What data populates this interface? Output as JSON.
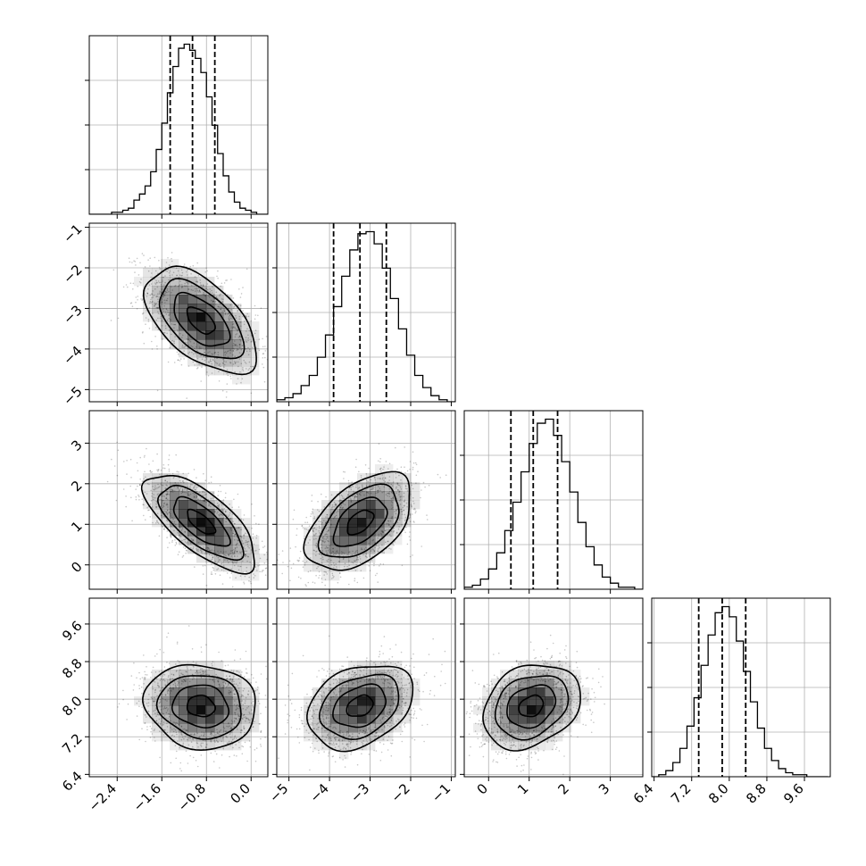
{
  "chart_data": {
    "type": "corner",
    "params": [
      {
        "range": [
          -2.9,
          0.3
        ],
        "ticks": [
          -2.4,
          -1.6,
          -0.8,
          0.0
        ],
        "tick_labels": [
          "−2.4",
          "−1.6",
          "−0.8",
          "0.0"
        ]
      },
      {
        "range": [
          -5.3,
          -0.9
        ],
        "ticks": [
          -5,
          -4,
          -3,
          -2,
          -1
        ],
        "tick_labels": [
          "−5",
          "−4",
          "−3",
          "−2",
          "−1"
        ]
      },
      {
        "range": [
          -0.6,
          3.8
        ],
        "ticks": [
          0,
          1,
          2,
          3
        ],
        "tick_labels": [
          "0",
          "1",
          "2",
          "3"
        ]
      },
      {
        "range": [
          6.35,
          10.15
        ],
        "ticks": [
          6.4,
          7.2,
          8.0,
          8.8,
          9.6
        ],
        "tick_labels": [
          "6.4",
          "7.2",
          "8.0",
          "8.8",
          "9.6"
        ]
      }
    ],
    "marginals": [
      {
        "quantiles": [
          -1.45,
          -1.05,
          -0.65
        ],
        "bin_edges": [
          -2.9,
          -2.8,
          -2.7,
          -2.6,
          -2.5,
          -2.4,
          -2.3,
          -2.2,
          -2.1,
          -2.0,
          -1.9,
          -1.8,
          -1.7,
          -1.6,
          -1.5,
          -1.4,
          -1.3,
          -1.2,
          -1.1,
          -1.0,
          -0.9,
          -0.8,
          -0.7,
          -0.6,
          -0.5,
          -0.4,
          -0.3,
          -0.2,
          -0.1,
          0.0,
          0.1,
          0.2,
          0.3
        ],
        "counts": [
          0,
          0,
          0,
          0,
          1,
          1,
          2,
          3,
          7,
          10,
          14,
          21,
          32,
          45,
          60,
          73,
          82,
          84,
          81,
          77,
          70,
          58,
          44,
          30,
          19,
          11,
          6,
          3,
          2,
          1,
          0,
          0
        ]
      },
      {
        "quantiles": [
          -3.9,
          -3.25,
          -2.6
        ],
        "bin_edges": [
          -5.3,
          -5.1,
          -4.9,
          -4.7,
          -4.5,
          -4.3,
          -4.1,
          -3.9,
          -3.7,
          -3.5,
          -3.3,
          -3.1,
          -2.9,
          -2.7,
          -2.5,
          -2.3,
          -2.1,
          -1.9,
          -1.7,
          -1.5,
          -1.3,
          -1.1,
          -0.9
        ],
        "counts": [
          1,
          2,
          4,
          8,
          13,
          22,
          33,
          47,
          62,
          75,
          83,
          84,
          78,
          66,
          51,
          36,
          23,
          13,
          7,
          3,
          1,
          0
        ]
      },
      {
        "quantiles": [
          0.55,
          1.1,
          1.7
        ],
        "bin_edges": [
          -0.6,
          -0.4,
          -0.2,
          0.0,
          0.2,
          0.4,
          0.6,
          0.8,
          1.0,
          1.2,
          1.4,
          1.6,
          1.8,
          2.0,
          2.2,
          2.4,
          2.6,
          2.8,
          3.0,
          3.2,
          3.4,
          3.6,
          3.8
        ],
        "counts": [
          1,
          2,
          5,
          10,
          18,
          29,
          43,
          58,
          72,
          82,
          84,
          76,
          63,
          48,
          33,
          21,
          12,
          6,
          3,
          1,
          1,
          0
        ]
      },
      {
        "quantiles": [
          7.35,
          7.85,
          8.35
        ],
        "bin_edges": [
          6.35,
          6.5,
          6.65,
          6.8,
          6.95,
          7.1,
          7.25,
          7.4,
          7.55,
          7.7,
          7.85,
          8.0,
          8.15,
          8.3,
          8.45,
          8.6,
          8.75,
          8.9,
          9.05,
          9.2,
          9.35,
          9.5,
          9.65,
          9.8,
          9.95,
          10.1
        ],
        "counts": [
          0,
          1,
          3,
          7,
          14,
          25,
          39,
          55,
          70,
          81,
          84,
          79,
          67,
          52,
          37,
          24,
          14,
          8,
          4,
          2,
          1,
          1,
          0,
          0,
          0
        ]
      }
    ],
    "pairs": [
      {
        "x": 0,
        "y": 1,
        "mean": [
          -0.9,
          -3.3
        ],
        "sd": [
          0.5,
          0.65
        ],
        "corr": -0.55
      },
      {
        "x": 0,
        "y": 2,
        "mean": [
          -0.9,
          1.05
        ],
        "sd": [
          0.5,
          0.6
        ],
        "corr": -0.7
      },
      {
        "x": 1,
        "y": 2,
        "mean": [
          -3.25,
          1.05
        ],
        "sd": [
          0.65,
          0.6
        ],
        "corr": 0.5
      },
      {
        "x": 0,
        "y": 3,
        "mean": [
          -0.9,
          7.85
        ],
        "sd": [
          0.5,
          0.45
        ],
        "corr": -0.1
      },
      {
        "x": 1,
        "y": 3,
        "mean": [
          -3.25,
          7.85
        ],
        "sd": [
          0.65,
          0.45
        ],
        "corr": 0.3
      },
      {
        "x": 2,
        "y": 3,
        "mean": [
          1.05,
          7.85
        ],
        "sd": [
          0.6,
          0.45
        ],
        "corr": 0.25
      }
    ],
    "contour_levels": [
      0.5,
      1.0,
      1.5,
      2.0
    ],
    "grid": true,
    "colors": {
      "line": "#000000",
      "grid": "#b0b0b0",
      "density": "#000000"
    }
  }
}
